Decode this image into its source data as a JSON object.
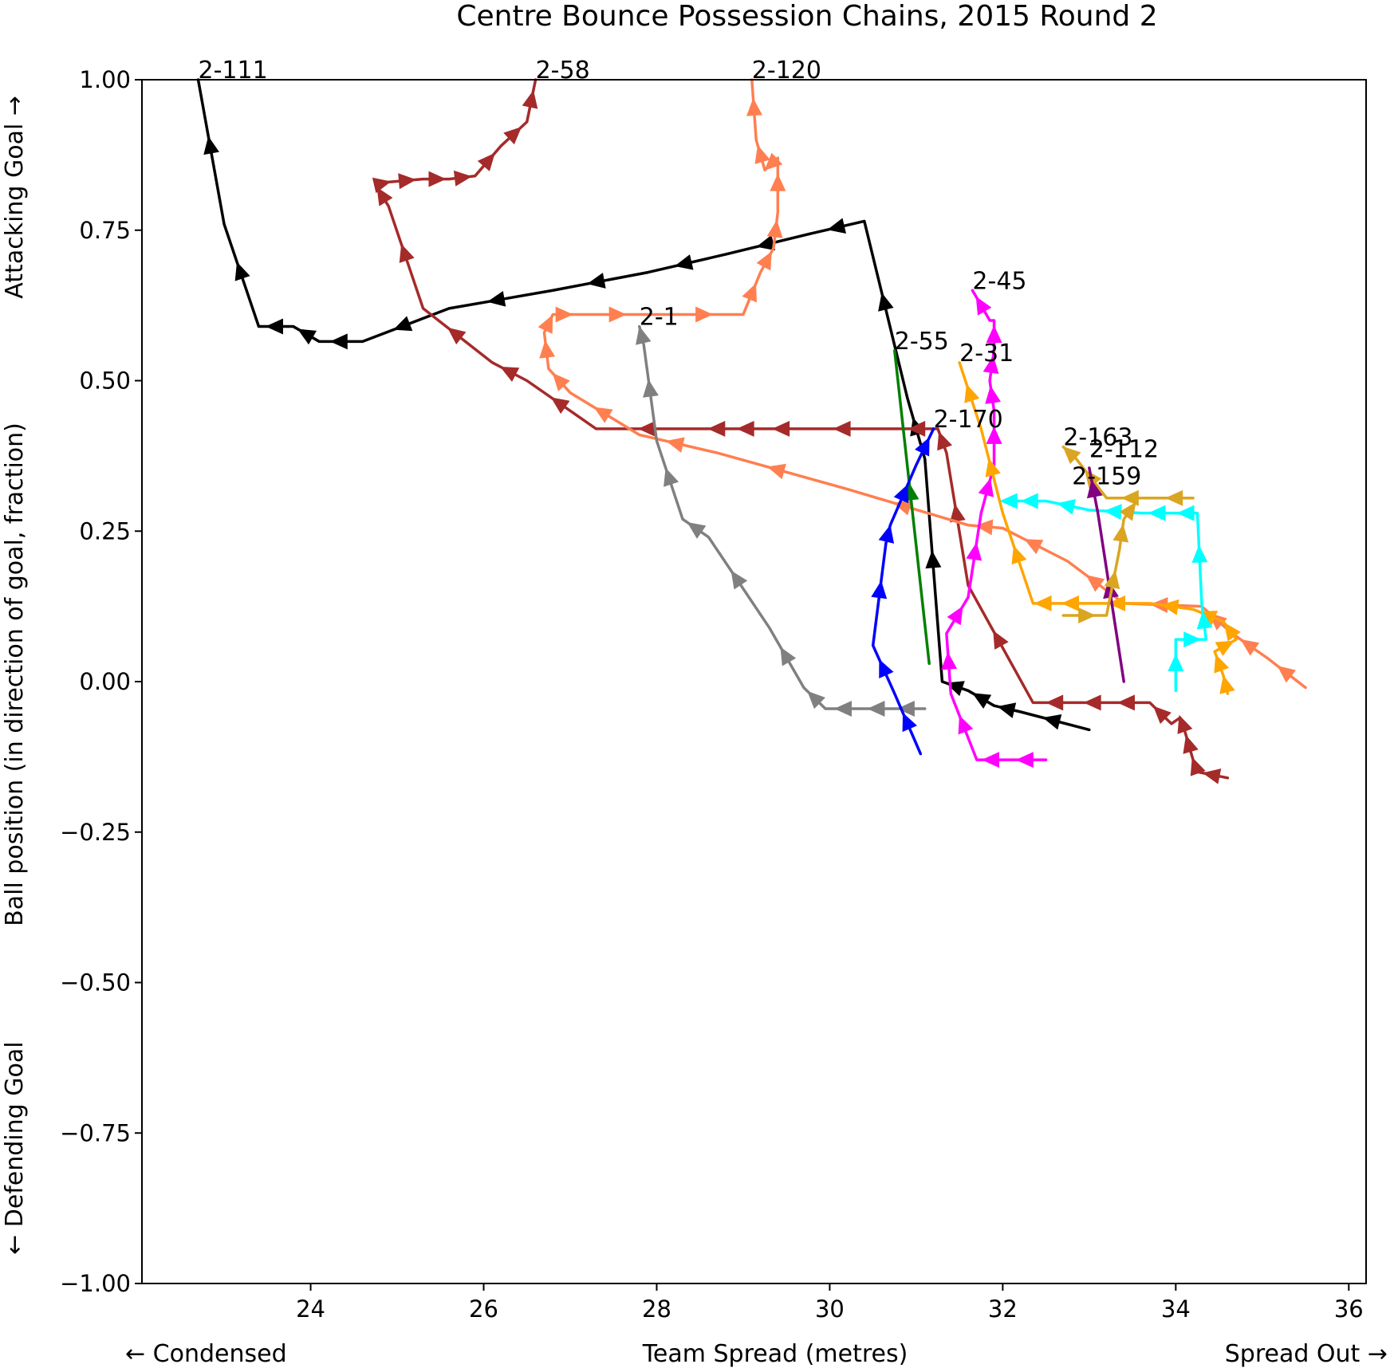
{
  "chart_data": {
    "type": "line",
    "title": "Centre Bounce Possession Chains, 2015 Round 2",
    "xlabel": "Team Spread (metres)",
    "xlabel_left": "← Condensed",
    "xlabel_right": "Spread Out →",
    "ylabel": "Ball position (in direction of goal, fraction)",
    "ylabel_top": "Attacking Goal →",
    "ylabel_bottom": "← Defending Goal",
    "xlim": [
      22.05,
      36.2
    ],
    "ylim": [
      -1.0,
      1.0
    ],
    "xticks": [
      24,
      26,
      28,
      30,
      32,
      34,
      36
    ],
    "yticks": [
      1.0,
      0.75,
      0.5,
      0.25,
      0.0,
      -0.25,
      -0.5,
      -0.75,
      -1.0
    ],
    "xtick_labels": [
      "24",
      "26",
      "28",
      "30",
      "32",
      "34",
      "36"
    ],
    "ytick_labels": [
      "1.00",
      "0.75",
      "0.50",
      "0.25",
      "0.00",
      "−0.25",
      "−0.50",
      "−0.75",
      "−1.00"
    ],
    "grid": false,
    "legend": "none",
    "series": [
      {
        "name": "2-111",
        "color": "#000000",
        "x": [
          33.0,
          32.2,
          31.9,
          31.6,
          31.3,
          31.1,
          30.9,
          30.4,
          29.8,
          28.8,
          27.9,
          26.8,
          25.6,
          24.6,
          24.1,
          23.8,
          23.4,
          23.0,
          22.7
        ],
        "y": [
          -0.08,
          -0.05,
          -0.04,
          -0.015,
          0.0,
          0.37,
          0.47,
          0.765,
          0.745,
          0.71,
          0.68,
          0.65,
          0.62,
          0.565,
          0.565,
          0.59,
          0.59,
          0.76,
          1.0
        ]
      },
      {
        "name": "2-58",
        "color": "#a52a2a",
        "x": [
          34.6,
          34.25,
          34.2,
          34.1,
          34.05,
          33.95,
          33.7,
          33.2,
          32.9,
          32.35,
          31.6,
          31.35,
          31.25,
          30.8,
          29.6,
          29.3,
          28.8,
          28.6,
          27.3,
          26.5,
          26.1,
          25.3,
          24.9,
          24.75,
          24.9,
          25.3,
          25.6,
          25.9,
          26.2,
          26.5,
          26.6
        ],
        "y": [
          -0.16,
          -0.15,
          -0.13,
          -0.08,
          -0.06,
          -0.07,
          -0.035,
          -0.035,
          -0.035,
          -0.035,
          0.16,
          0.38,
          0.42,
          0.42,
          0.42,
          0.42,
          0.42,
          0.42,
          0.42,
          0.5,
          0.53,
          0.62,
          0.79,
          0.825,
          0.83,
          0.835,
          0.835,
          0.84,
          0.89,
          0.93,
          1.0
        ]
      },
      {
        "name": "2-120",
        "color": "#ff7f50",
        "x": [
          35.5,
          35.05,
          34.65,
          34.3,
          33.4,
          32.75,
          32.0,
          31.6,
          30.2,
          28.7,
          27.8,
          27.0,
          26.75,
          26.7,
          26.8,
          26.85,
          27.0,
          28.0,
          29.0,
          29.2,
          29.35,
          29.4,
          29.4,
          29.25,
          29.15,
          29.1
        ],
        "y": [
          -0.01,
          0.04,
          0.08,
          0.125,
          0.13,
          0.2,
          0.255,
          0.26,
          0.32,
          0.38,
          0.41,
          0.48,
          0.52,
          0.58,
          0.61,
          0.61,
          0.61,
          0.61,
          0.61,
          0.68,
          0.72,
          0.78,
          0.87,
          0.85,
          0.9,
          1.0
        ]
      },
      {
        "name": "2-1",
        "color": "#808080",
        "x": [
          31.1,
          30.7,
          30.4,
          29.95,
          29.7,
          29.3,
          28.6,
          28.3,
          28.0,
          27.85,
          27.8
        ],
        "y": [
          -0.045,
          -0.045,
          -0.045,
          -0.045,
          -0.01,
          0.09,
          0.24,
          0.27,
          0.4,
          0.56,
          0.59
        ]
      },
      {
        "name": "2-45",
        "color": "#ff00ff",
        "x": [
          32.5,
          32.05,
          31.7,
          31.4,
          31.35,
          31.6,
          31.75,
          31.9,
          31.9,
          31.85,
          31.9,
          31.9,
          31.85,
          31.65
        ],
        "y": [
          -0.13,
          -0.13,
          -0.13,
          -0.02,
          0.08,
          0.14,
          0.28,
          0.36,
          0.45,
          0.5,
          0.55,
          0.6,
          0.6,
          0.65
        ]
      },
      {
        "name": "2-55",
        "color": "#008000",
        "x": [
          31.15,
          30.75
        ],
        "y": [
          0.03,
          0.55
        ]
      },
      {
        "name": "2-31",
        "color": "#ffa500",
        "x": [
          34.6,
          34.55,
          34.45,
          34.7,
          34.55,
          34.2,
          33.7,
          33.0,
          32.6,
          32.35,
          32.0,
          31.75,
          31.5
        ],
        "y": [
          -0.02,
          0.01,
          0.05,
          0.07,
          0.1,
          0.12,
          0.13,
          0.13,
          0.13,
          0.13,
          0.28,
          0.42,
          0.53
        ]
      },
      {
        "name": "2-170",
        "color": "#0000ff",
        "x": [
          31.05,
          30.75,
          30.5,
          30.65,
          30.7,
          31.0,
          31.2
        ],
        "y": [
          -0.12,
          -0.02,
          0.06,
          0.23,
          0.26,
          0.36,
          0.42
        ]
      },
      {
        "name": "2-163",
        "color": "#daa520",
        "x": [
          34.2,
          33.8,
          33.2,
          32.85,
          32.7
        ],
        "y": [
          0.305,
          0.305,
          0.305,
          0.37,
          0.39
        ]
      },
      {
        "name": "2-112",
        "color": "#00ffff",
        "x": [
          34.0,
          34.0,
          34.35,
          34.3,
          34.25,
          34.0,
          33.6,
          33.0,
          32.5,
          32.15,
          32.0
        ],
        "y": [
          -0.015,
          0.07,
          0.07,
          0.13,
          0.28,
          0.28,
          0.28,
          0.285,
          0.3,
          0.3,
          0.3
        ]
      },
      {
        "name": "2-159",
        "color": "#800080",
        "x": [
          33.4,
          33.1,
          33.0
        ],
        "y": [
          0.0,
          0.28,
          0.355
        ]
      },
      {
        "name": "2-112 (gold)",
        "color": "#daa520",
        "x": [
          32.7,
          33.2,
          33.35,
          33.4,
          33.55
        ],
        "y": [
          0.11,
          0.11,
          0.22,
          0.27,
          0.3
        ]
      }
    ],
    "annotations": [
      {
        "text": "2-111",
        "x": 22.7,
        "y": 1.0
      },
      {
        "text": "2-58",
        "x": 26.6,
        "y": 1.0
      },
      {
        "text": "2-120",
        "x": 29.1,
        "y": 1.0
      },
      {
        "text": "2-45",
        "x": 31.65,
        "y": 0.65
      },
      {
        "text": "2-55",
        "x": 30.75,
        "y": 0.55
      },
      {
        "text": "2-31",
        "x": 31.5,
        "y": 0.53
      },
      {
        "text": "2-1",
        "x": 27.8,
        "y": 0.59
      },
      {
        "text": "2-170",
        "x": 31.2,
        "y": 0.42
      },
      {
        "text": "2-163",
        "x": 32.7,
        "y": 0.39
      },
      {
        "text": "2-112",
        "x": 33.0,
        "y": 0.37
      },
      {
        "text": "2-159",
        "x": 32.8,
        "y": 0.325
      }
    ]
  }
}
